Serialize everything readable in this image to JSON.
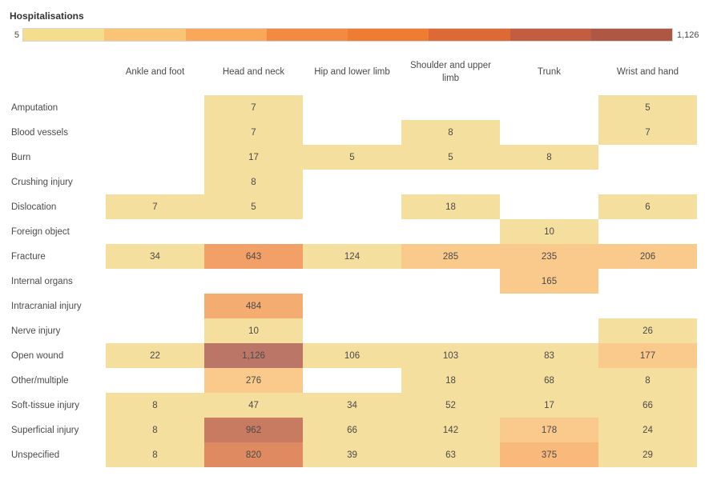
{
  "title": "Hospitalisations",
  "legend": {
    "min_label": "5",
    "max_label": "1,126",
    "steps": [
      "#F5DD8E",
      "#F9C475",
      "#F9A75A",
      "#F28A41",
      "#EE7D33",
      "#DD6936",
      "#C35D40",
      "#AD5744"
    ]
  },
  "chart_data": {
    "type": "heatmap",
    "title": "Hospitalisations",
    "legend_position": "top",
    "columns": [
      "Ankle and foot",
      "Head and neck",
      "Hip and lower limb",
      "Shoulder and upper limb",
      "Trunk",
      "Wrist and hand"
    ],
    "rows": [
      "Amputation",
      "Blood vessels",
      "Burn",
      "Crushing injury",
      "Dislocation",
      "Foreign object",
      "Fracture",
      "Internal organs",
      "Intracranial injury",
      "Nerve injury",
      "Open wound",
      "Other/multiple",
      "Soft-tissue injury",
      "Superficial injury",
      "Unspecified"
    ],
    "values": [
      [
        null,
        7,
        null,
        null,
        null,
        5
      ],
      [
        null,
        7,
        null,
        8,
        null,
        7
      ],
      [
        null,
        17,
        5,
        5,
        8,
        null
      ],
      [
        null,
        8,
        null,
        null,
        null,
        null
      ],
      [
        7,
        5,
        null,
        18,
        null,
        6
      ],
      [
        null,
        null,
        null,
        null,
        10,
        null
      ],
      [
        34,
        643,
        124,
        285,
        235,
        206
      ],
      [
        null,
        null,
        null,
        null,
        165,
        null
      ],
      [
        null,
        484,
        null,
        null,
        null,
        null
      ],
      [
        null,
        10,
        null,
        null,
        null,
        26
      ],
      [
        22,
        1126,
        106,
        103,
        83,
        177
      ],
      [
        null,
        276,
        null,
        18,
        68,
        8
      ],
      [
        8,
        47,
        34,
        52,
        17,
        66
      ],
      [
        8,
        962,
        66,
        142,
        178,
        24
      ],
      [
        8,
        820,
        39,
        63,
        375,
        29
      ]
    ],
    "color_scale": {
      "mode": "stepped",
      "min": 5,
      "max": 1126,
      "steps": 8,
      "cell_palette": [
        "#F5DF9E",
        "#F9CA8B",
        "#F8B97A",
        "#F5AC71",
        "#F2A067",
        "#E08A62",
        "#C97B62",
        "#BC7668"
      ]
    },
    "value_range": [
      5,
      1126
    ]
  }
}
